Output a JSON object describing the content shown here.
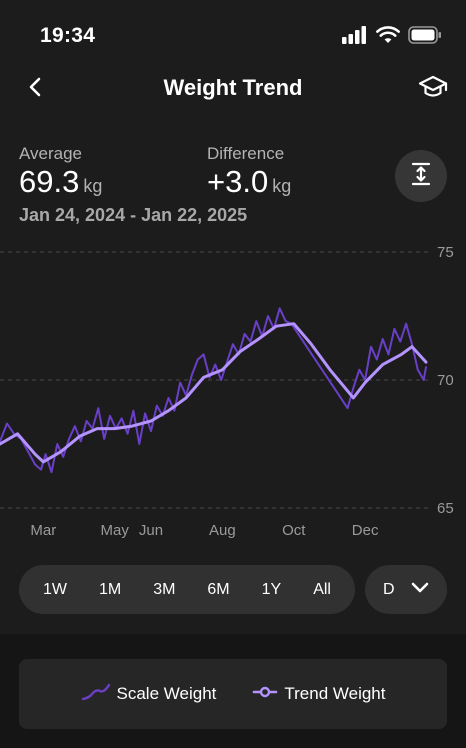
{
  "status_bar": {
    "time": "19:34"
  },
  "nav": {
    "title": "Weight Trend"
  },
  "summary": {
    "average_label": "Average",
    "average_value": "69.3",
    "average_unit": "kg",
    "difference_label": "Difference",
    "difference_value": "+3.0",
    "difference_unit": "kg",
    "date_range": "Jan 24, 2024 - Jan 22, 2025"
  },
  "colors": {
    "background": "#1c1c1c",
    "scale_weight": "#6a3fc8",
    "trend_weight": "#b493ff",
    "grid": "#4a4a4a"
  },
  "range_options": [
    "1W",
    "1M",
    "3M",
    "6M",
    "1Y",
    "All"
  ],
  "granularity": {
    "value": "D"
  },
  "legend": {
    "scale_label": "Scale Weight",
    "trend_label": "Trend Weight"
  },
  "chart_data": {
    "type": "line",
    "x_unit": "date",
    "ylim": [
      65,
      75
    ],
    "y_ticks": [
      "75",
      "70",
      "65"
    ],
    "x_tick_labels": [
      "Mar",
      "May",
      "Jun",
      "Aug",
      "Oct",
      "Dec"
    ],
    "x_tick_dates": [
      "2024-03-01",
      "2024-05-01",
      "2024-06-01",
      "2024-08-01",
      "2024-10-01",
      "2024-12-01"
    ],
    "x_range": [
      "2024-01-24",
      "2025-01-22"
    ],
    "grid": "dashed horizontal",
    "series": [
      {
        "name": "Scale Weight",
        "color": "#6a3fc8",
        "points": [
          [
            "2024-01-24",
            67.6
          ],
          [
            "2024-01-30",
            68.3
          ],
          [
            "2024-02-05",
            67.9
          ],
          [
            "2024-02-11",
            67.7
          ],
          [
            "2024-02-17",
            67.2
          ],
          [
            "2024-02-23",
            66.7
          ],
          [
            "2024-02-28",
            66.5
          ],
          [
            "2024-03-03",
            67.1
          ],
          [
            "2024-03-08",
            66.4
          ],
          [
            "2024-03-13",
            67.5
          ],
          [
            "2024-03-18",
            67.0
          ],
          [
            "2024-03-23",
            67.7
          ],
          [
            "2024-03-28",
            68.2
          ],
          [
            "2024-04-02",
            67.6
          ],
          [
            "2024-04-07",
            68.4
          ],
          [
            "2024-04-12",
            68.1
          ],
          [
            "2024-04-17",
            68.9
          ],
          [
            "2024-04-22",
            67.7
          ],
          [
            "2024-04-27",
            68.6
          ],
          [
            "2024-05-02",
            68.1
          ],
          [
            "2024-05-07",
            68.5
          ],
          [
            "2024-05-12",
            67.9
          ],
          [
            "2024-05-17",
            68.8
          ],
          [
            "2024-05-22",
            67.5
          ],
          [
            "2024-05-27",
            68.7
          ],
          [
            "2024-06-01",
            68.0
          ],
          [
            "2024-06-06",
            69.0
          ],
          [
            "2024-06-11",
            68.6
          ],
          [
            "2024-06-16",
            69.3
          ],
          [
            "2024-06-21",
            68.8
          ],
          [
            "2024-06-26",
            69.9
          ],
          [
            "2024-07-01",
            69.4
          ],
          [
            "2024-07-06",
            70.2
          ],
          [
            "2024-07-11",
            70.8
          ],
          [
            "2024-07-16",
            71.0
          ],
          [
            "2024-07-21",
            70.1
          ],
          [
            "2024-07-26",
            70.6
          ],
          [
            "2024-07-31",
            70.0
          ],
          [
            "2024-08-05",
            70.7
          ],
          [
            "2024-08-10",
            71.4
          ],
          [
            "2024-08-15",
            71.0
          ],
          [
            "2024-08-20",
            71.8
          ],
          [
            "2024-08-25",
            71.5
          ],
          [
            "2024-08-30",
            72.3
          ],
          [
            "2024-09-04",
            71.7
          ],
          [
            "2024-09-09",
            72.5
          ],
          [
            "2024-09-14",
            72.0
          ],
          [
            "2024-09-19",
            72.8
          ],
          [
            "2024-09-24",
            72.3
          ],
          [
            "2024-09-29",
            72.2
          ],
          [
            "2024-10-15",
            71.1
          ],
          [
            "2024-10-31",
            70.0
          ],
          [
            "2024-11-16",
            68.9
          ],
          [
            "2024-11-21",
            69.7
          ],
          [
            "2024-11-26",
            70.4
          ],
          [
            "2024-12-01",
            70.0
          ],
          [
            "2024-12-06",
            71.3
          ],
          [
            "2024-12-11",
            70.8
          ],
          [
            "2024-12-16",
            71.6
          ],
          [
            "2024-12-21",
            71.0
          ],
          [
            "2024-12-26",
            72.0
          ],
          [
            "2024-12-31",
            71.5
          ],
          [
            "2025-01-05",
            72.2
          ],
          [
            "2025-01-10",
            71.4
          ],
          [
            "2025-01-15",
            70.4
          ],
          [
            "2025-01-20",
            70.0
          ],
          [
            "2025-01-22",
            70.5
          ]
        ]
      },
      {
        "name": "Trend Weight",
        "color": "#b493ff",
        "points": [
          [
            "2024-01-24",
            67.5
          ],
          [
            "2024-02-08",
            67.9
          ],
          [
            "2024-02-23",
            67.1
          ],
          [
            "2024-03-01",
            66.8
          ],
          [
            "2024-03-16",
            67.2
          ],
          [
            "2024-04-01",
            67.8
          ],
          [
            "2024-04-16",
            68.1
          ],
          [
            "2024-05-01",
            68.1
          ],
          [
            "2024-05-16",
            68.2
          ],
          [
            "2024-06-01",
            68.4
          ],
          [
            "2024-06-16",
            68.8
          ],
          [
            "2024-07-01",
            69.3
          ],
          [
            "2024-07-16",
            70.1
          ],
          [
            "2024-08-01",
            70.4
          ],
          [
            "2024-08-16",
            71.1
          ],
          [
            "2024-09-01",
            71.6
          ],
          [
            "2024-09-16",
            72.1
          ],
          [
            "2024-10-01",
            72.2
          ],
          [
            "2024-10-16",
            71.4
          ],
          [
            "2024-11-01",
            70.4
          ],
          [
            "2024-11-21",
            69.3
          ],
          [
            "2024-12-01",
            69.9
          ],
          [
            "2024-12-16",
            70.6
          ],
          [
            "2025-01-01",
            71.0
          ],
          [
            "2025-01-10",
            71.3
          ],
          [
            "2025-01-22",
            70.7
          ]
        ]
      }
    ]
  }
}
